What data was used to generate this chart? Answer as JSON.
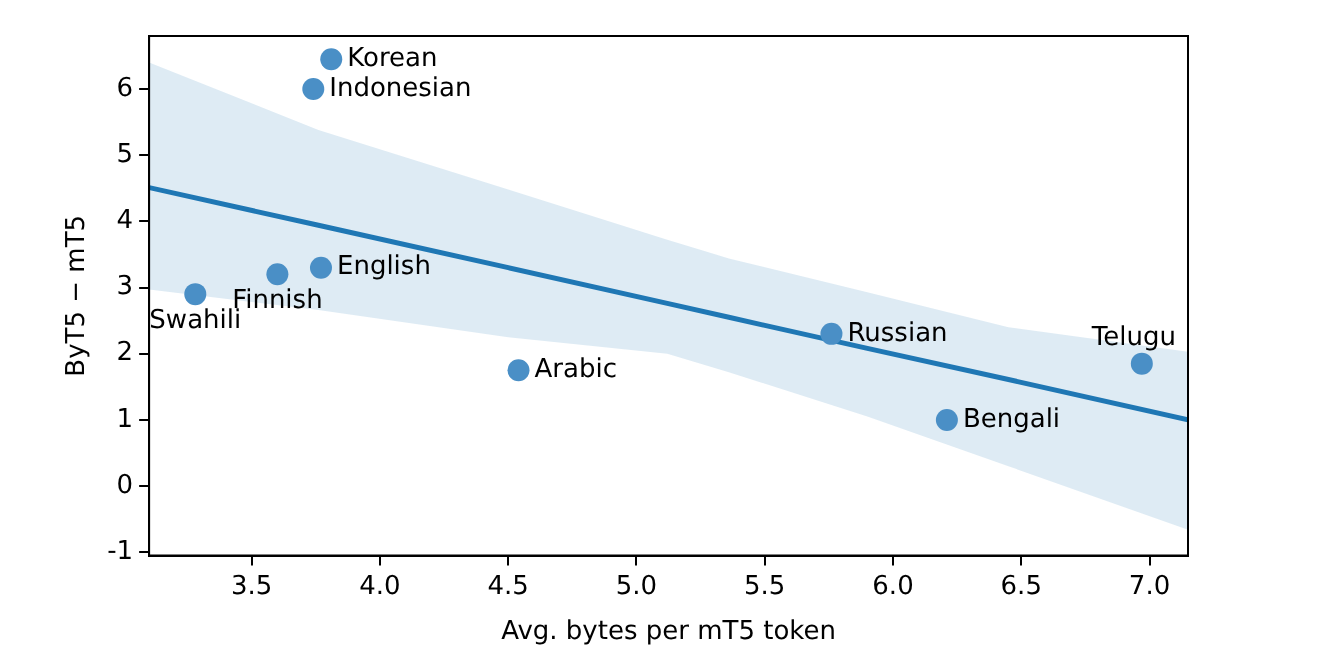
{
  "chart_data": {
    "type": "scatter",
    "xlabel": "Avg. bytes per mT5 token",
    "ylabel": "ByT5 − mT5",
    "xlim": [
      3.1,
      7.15
    ],
    "ylim": [
      -1.05,
      6.8
    ],
    "xticks": [
      3.5,
      {
        "value": 4,
        "label": "4.0"
      },
      4.5,
      {
        "value": 5,
        "label": "5.0"
      },
      5.5,
      {
        "value": 6,
        "label": "6.0"
      },
      6.5,
      {
        "value": 7,
        "label": "7.0"
      }
    ],
    "yticks": [
      -1,
      0,
      1,
      2,
      3,
      4,
      5,
      6
    ],
    "grid": false,
    "legend": false,
    "series": [
      {
        "marker": "circle",
        "color": "#4a8fc6",
        "x": [
          3.81,
          3.74,
          3.77,
          3.6,
          3.28,
          4.54,
          5.76,
          6.21,
          6.97
        ],
        "values": [
          6.45,
          6.0,
          3.3,
          3.2,
          2.9,
          1.75,
          2.3,
          1.0,
          1.85
        ]
      },
      {
        "type": "line",
        "color": "#1f77b4",
        "x": [
          3.1,
          3.76,
          4.5,
          5.12,
          5.36,
          5.9,
          6.45,
          7.15
        ],
        "values": [
          4.51,
          3.94,
          3.3,
          2.76,
          2.55,
          2.08,
          1.61,
          1.0
        ],
        "lower": [
          2.97,
          2.66,
          2.25,
          2.0,
          1.72,
          1.05,
          0.3,
          -0.66
        ],
        "upper": [
          6.4,
          5.38,
          4.48,
          3.72,
          3.44,
          2.93,
          2.4,
          2.03
        ]
      }
    ],
    "annotations": [
      {
        "text": "Korean",
        "x": 3.81,
        "y": 6.45
      },
      {
        "text": "Indonesian",
        "x": 3.74,
        "y": 6.0
      },
      {
        "text": "English",
        "x": 3.77,
        "y": 3.3
      },
      {
        "text": "Finnish",
        "x": 3.6,
        "y": 3.2
      },
      {
        "text": "Swahili",
        "x": 3.28,
        "y": 2.9
      },
      {
        "text": "Arabic",
        "x": 4.54,
        "y": 1.75
      },
      {
        "text": "Russian",
        "x": 5.76,
        "y": 2.3
      },
      {
        "text": "Bengali",
        "x": 6.21,
        "y": 1.0
      },
      {
        "text": "Telugu",
        "x": 6.97,
        "y": 1.85
      }
    ]
  }
}
